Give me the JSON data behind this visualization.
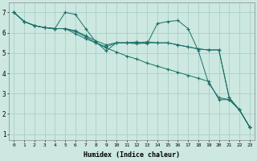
{
  "xlabel": "Humidex (Indice chaleur)",
  "ylabel": "",
  "background_color": "#cce8e0",
  "grid_color": "#aacfc8",
  "line_color": "#1a7068",
  "xlim": [
    -0.5,
    23.5
  ],
  "ylim": [
    0.7,
    7.5
  ],
  "xticks": [
    0,
    1,
    2,
    3,
    4,
    5,
    6,
    7,
    8,
    9,
    10,
    11,
    12,
    13,
    14,
    15,
    16,
    17,
    18,
    19,
    20,
    21,
    22,
    23
  ],
  "yticks": [
    1,
    2,
    3,
    4,
    5,
    6,
    7
  ],
  "series": [
    {
      "x": [
        0,
        1,
        2,
        3,
        4,
        5,
        6,
        7,
        8,
        9,
        10,
        11,
        12,
        13,
        14,
        15,
        16,
        17,
        18,
        19,
        20,
        21,
        22,
        23
      ],
      "y": [
        7.0,
        6.55,
        6.35,
        6.25,
        6.2,
        6.2,
        5.95,
        5.7,
        5.5,
        5.25,
        5.05,
        4.85,
        4.7,
        4.5,
        4.35,
        4.2,
        4.05,
        3.9,
        3.75,
        3.6,
        2.7,
        2.7,
        2.2,
        1.35
      ]
    },
    {
      "x": [
        0,
        1,
        2,
        3,
        4,
        5,
        6,
        7,
        8,
        9,
        10,
        11,
        12,
        13,
        14,
        15,
        16,
        17,
        18,
        19,
        20,
        21,
        22,
        23
      ],
      "y": [
        7.0,
        6.55,
        6.35,
        6.25,
        6.2,
        7.0,
        6.9,
        6.2,
        5.55,
        5.1,
        5.5,
        5.5,
        5.55,
        5.45,
        6.45,
        6.55,
        6.6,
        6.2,
        5.1,
        3.5,
        2.8,
        2.7,
        2.2,
        1.35
      ]
    },
    {
      "x": [
        0,
        1,
        2,
        3,
        4,
        5,
        6,
        7,
        8,
        9,
        10,
        11,
        12,
        13,
        14,
        15,
        16,
        17,
        18,
        19,
        20,
        21,
        22,
        23
      ],
      "y": [
        7.0,
        6.55,
        6.35,
        6.25,
        6.2,
        6.2,
        6.1,
        5.85,
        5.6,
        5.4,
        5.5,
        5.5,
        5.45,
        5.5,
        5.5,
        5.5,
        5.4,
        5.3,
        5.2,
        5.15,
        5.15,
        2.8,
        2.2,
        1.35
      ]
    },
    {
      "x": [
        0,
        1,
        2,
        3,
        4,
        5,
        6,
        7,
        8,
        9,
        10,
        11,
        12,
        13,
        14,
        15,
        16,
        17,
        18,
        19,
        20,
        21,
        22,
        23
      ],
      "y": [
        7.0,
        6.55,
        6.35,
        6.25,
        6.2,
        6.2,
        6.05,
        5.8,
        5.5,
        5.3,
        5.5,
        5.5,
        5.5,
        5.55,
        5.5,
        5.5,
        5.4,
        5.3,
        5.2,
        5.15,
        5.15,
        2.8,
        2.2,
        1.35
      ]
    }
  ]
}
